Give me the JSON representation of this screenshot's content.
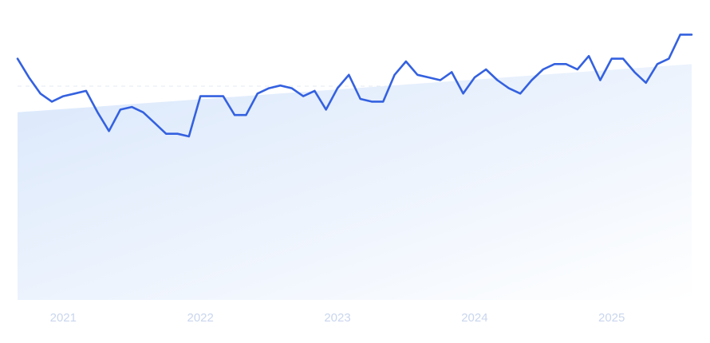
{
  "chart_data": {
    "type": "line",
    "title": "",
    "xlabel": "",
    "ylabel": "",
    "x_tick_labels": [
      "2021",
      "2022",
      "2023",
      "2024",
      "2025"
    ],
    "x_ticks": [
      "2021-01",
      "2022-01",
      "2023-01",
      "2024-01",
      "2025-01"
    ],
    "x_range": [
      "2020-09",
      "2025-08"
    ],
    "ylim": [
      0,
      100
    ],
    "grid": {
      "horizontal": true,
      "vertical": false
    },
    "legend": "none",
    "colors": {
      "line": "#3461e0",
      "area_start": "#d9e7fb",
      "area_end": "#ffffff",
      "grid": "#e3e8f0",
      "tick_text": "#c9d6ee"
    },
    "series": [
      {
        "x": [
          "2020-09",
          "2020-10",
          "2020-11",
          "2020-12",
          "2021-01",
          "2021-02",
          "2021-03",
          "2021-04",
          "2021-05",
          "2021-06",
          "2021-07",
          "2021-08",
          "2021-09",
          "2021-10",
          "2021-11",
          "2021-12",
          "2022-01",
          "2022-02",
          "2022-03",
          "2022-04",
          "2022-05",
          "2022-06",
          "2022-07",
          "2022-08",
          "2022-09",
          "2022-10",
          "2022-11",
          "2022-12",
          "2023-01",
          "2023-02",
          "2023-03",
          "2023-04",
          "2023-05",
          "2023-06",
          "2023-07",
          "2023-08",
          "2023-09",
          "2023-10",
          "2023-11",
          "2023-12",
          "2024-01",
          "2024-02",
          "2024-03",
          "2024-04",
          "2024-05",
          "2024-06",
          "2024-07",
          "2024-08",
          "2024-09",
          "2024-10",
          "2024-11",
          "2024-12",
          "2025-01",
          "2025-02",
          "2025-03",
          "2025-04",
          "2025-05",
          "2025-06",
          "2025-07",
          "2025-08"
        ],
        "values": [
          90,
          83,
          77,
          74,
          76,
          77,
          78,
          70,
          63,
          71,
          72,
          70,
          66,
          62,
          62,
          61,
          76,
          76,
          76,
          69,
          69,
          77,
          79,
          80,
          79,
          76,
          78,
          71,
          79,
          84,
          75,
          74,
          74,
          84,
          89,
          84,
          83,
          82,
          85,
          77,
          83,
          86,
          82,
          79,
          77,
          82,
          86,
          88,
          88,
          86,
          91,
          82,
          90,
          90,
          85,
          81,
          88,
          90,
          99,
          99
        ]
      }
    ],
    "trend_band": {
      "values_at_ends": [
        70,
        88
      ]
    }
  }
}
